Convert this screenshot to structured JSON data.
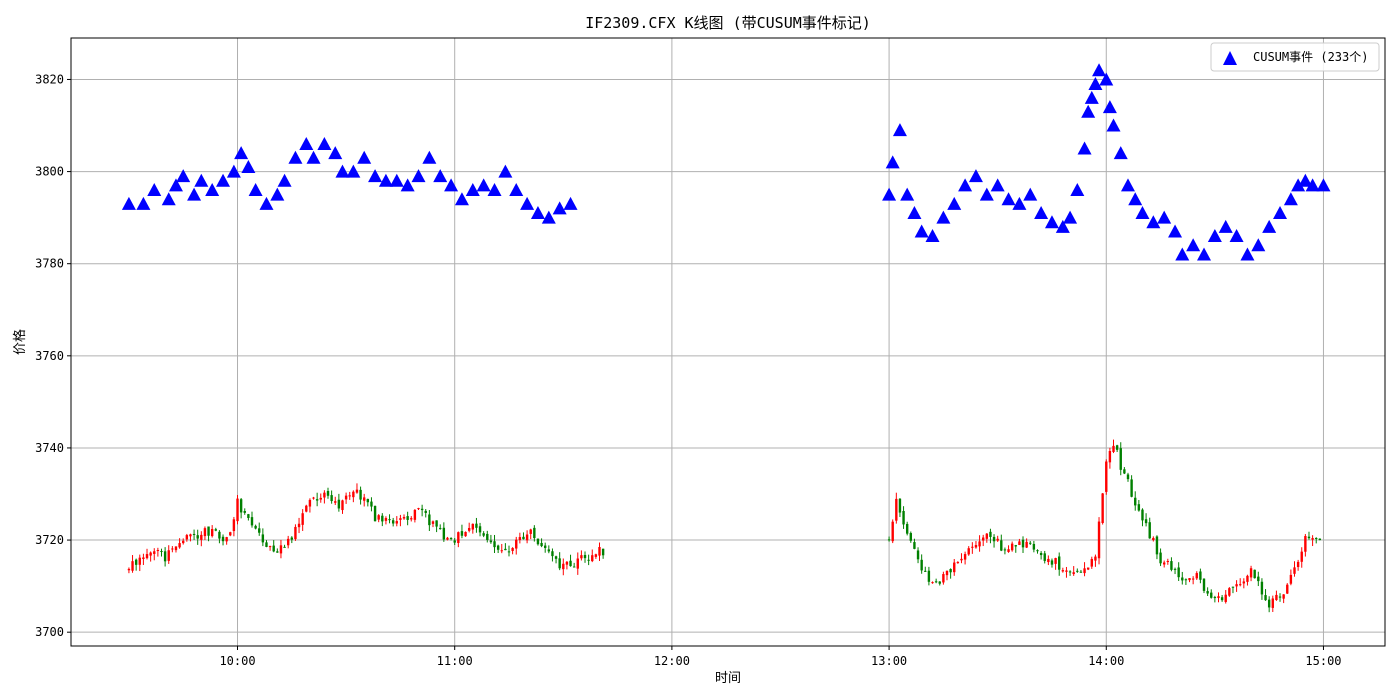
{
  "chart_data": {
    "type": "candlestick",
    "title": "IF2309.CFX K线图 (带CUSUM事件标记)",
    "xlabel": "时间",
    "ylabel": "价格",
    "xlim": [
      "09:14",
      "15:17"
    ],
    "ylim": [
      3697,
      3829
    ],
    "x_ticks": [
      "10:00",
      "11:00",
      "12:00",
      "13:00",
      "14:00",
      "15:00"
    ],
    "y_ticks": [
      3700,
      3720,
      3740,
      3760,
      3780,
      3800,
      3820
    ],
    "grid": true,
    "legend": {
      "label": "CUSUM事件 (233个)",
      "position": "top-right"
    },
    "colors": {
      "up": "#ff0000",
      "down": "#008000",
      "marker": "#0000ff",
      "grid": "#b0b0b0"
    },
    "series": [
      {
        "type": "candlestick",
        "close_path": [
          [
            "09:30",
            3714
          ],
          [
            "09:36",
            3718
          ],
          [
            "09:40",
            3716
          ],
          [
            "09:45",
            3720
          ],
          [
            "09:52",
            3722
          ],
          [
            "09:57",
            3720
          ],
          [
            "10:00",
            3728
          ],
          [
            "10:05",
            3722
          ],
          [
            "10:10",
            3717
          ],
          [
            "10:15",
            3721
          ],
          [
            "10:20",
            3728
          ],
          [
            "10:24",
            3731
          ],
          [
            "10:28",
            3727
          ],
          [
            "10:33",
            3731
          ],
          [
            "10:38",
            3725
          ],
          [
            "10:45",
            3724
          ],
          [
            "10:50",
            3727
          ],
          [
            "10:55",
            3722
          ],
          [
            "11:00",
            3720
          ],
          [
            "11:05",
            3724
          ],
          [
            "11:10",
            3719
          ],
          [
            "11:15",
            3718
          ],
          [
            "11:20",
            3722
          ],
          [
            "11:25",
            3718
          ],
          [
            "11:30",
            3714
          ],
          [
            "11:35",
            3716
          ],
          [
            "11:42",
            3718
          ],
          [
            "13:00",
            3719
          ],
          [
            "13:02",
            3729
          ],
          [
            "13:05",
            3722
          ],
          [
            "13:08",
            3715
          ],
          [
            "13:12",
            3710
          ],
          [
            "13:17",
            3714
          ],
          [
            "13:22",
            3718
          ],
          [
            "13:27",
            3722
          ],
          [
            "13:32",
            3718
          ],
          [
            "13:38",
            3719
          ],
          [
            "13:44",
            3716
          ],
          [
            "13:48",
            3714
          ],
          [
            "13:53",
            3713
          ],
          [
            "13:57",
            3716
          ],
          [
            "14:00",
            3738
          ],
          [
            "14:02",
            3741
          ],
          [
            "14:05",
            3734
          ],
          [
            "14:10",
            3725
          ],
          [
            "14:15",
            3716
          ],
          [
            "14:20",
            3712
          ],
          [
            "14:25",
            3712
          ],
          [
            "14:30",
            3707
          ],
          [
            "14:35",
            3709
          ],
          [
            "14:40",
            3713
          ],
          [
            "14:45",
            3706
          ],
          [
            "14:50",
            3710
          ],
          [
            "14:55",
            3720
          ],
          [
            "14:59",
            3720
          ]
        ]
      },
      {
        "name": "CUSUM事件 (233个)",
        "type": "scatter",
        "marker": "triangle-up",
        "points": [
          [
            "09:30",
            3793
          ],
          [
            "09:34",
            3793
          ],
          [
            "09:37",
            3796
          ],
          [
            "09:41",
            3794
          ],
          [
            "09:43",
            3797
          ],
          [
            "09:45",
            3799
          ],
          [
            "09:48",
            3795
          ],
          [
            "09:50",
            3798
          ],
          [
            "09:53",
            3796
          ],
          [
            "09:56",
            3798
          ],
          [
            "09:59",
            3800
          ],
          [
            "10:01",
            3804
          ],
          [
            "10:03",
            3801
          ],
          [
            "10:05",
            3796
          ],
          [
            "10:08",
            3793
          ],
          [
            "10:11",
            3795
          ],
          [
            "10:13",
            3798
          ],
          [
            "10:16",
            3803
          ],
          [
            "10:19",
            3806
          ],
          [
            "10:21",
            3803
          ],
          [
            "10:24",
            3806
          ],
          [
            "10:27",
            3804
          ],
          [
            "10:29",
            3800
          ],
          [
            "10:32",
            3800
          ],
          [
            "10:35",
            3803
          ],
          [
            "10:38",
            3799
          ],
          [
            "10:41",
            3798
          ],
          [
            "10:44",
            3798
          ],
          [
            "10:47",
            3797
          ],
          [
            "10:50",
            3799
          ],
          [
            "10:53",
            3803
          ],
          [
            "10:56",
            3799
          ],
          [
            "10:59",
            3797
          ],
          [
            "11:02",
            3794
          ],
          [
            "11:05",
            3796
          ],
          [
            "11:08",
            3797
          ],
          [
            "11:11",
            3796
          ],
          [
            "11:14",
            3800
          ],
          [
            "11:17",
            3796
          ],
          [
            "11:20",
            3793
          ],
          [
            "11:23",
            3791
          ],
          [
            "11:26",
            3790
          ],
          [
            "11:29",
            3792
          ],
          [
            "11:32",
            3793
          ],
          [
            "13:00",
            3795
          ],
          [
            "13:01",
            3802
          ],
          [
            "13:03",
            3809
          ],
          [
            "13:05",
            3795
          ],
          [
            "13:07",
            3791
          ],
          [
            "13:09",
            3787
          ],
          [
            "13:12",
            3786
          ],
          [
            "13:15",
            3790
          ],
          [
            "13:18",
            3793
          ],
          [
            "13:21",
            3797
          ],
          [
            "13:24",
            3799
          ],
          [
            "13:27",
            3795
          ],
          [
            "13:30",
            3797
          ],
          [
            "13:33",
            3794
          ],
          [
            "13:36",
            3793
          ],
          [
            "13:39",
            3795
          ],
          [
            "13:42",
            3791
          ],
          [
            "13:45",
            3789
          ],
          [
            "13:48",
            3788
          ],
          [
            "13:50",
            3790
          ],
          [
            "13:52",
            3796
          ],
          [
            "13:54",
            3805
          ],
          [
            "13:55",
            3813
          ],
          [
            "13:56",
            3816
          ],
          [
            "13:57",
            3819
          ],
          [
            "13:58",
            3822
          ],
          [
            "14:00",
            3820
          ],
          [
            "14:01",
            3814
          ],
          [
            "14:02",
            3810
          ],
          [
            "14:04",
            3804
          ],
          [
            "14:06",
            3797
          ],
          [
            "14:08",
            3794
          ],
          [
            "14:10",
            3791
          ],
          [
            "14:13",
            3789
          ],
          [
            "14:16",
            3790
          ],
          [
            "14:19",
            3787
          ],
          [
            "14:21",
            3782
          ],
          [
            "14:24",
            3784
          ],
          [
            "14:27",
            3782
          ],
          [
            "14:30",
            3786
          ],
          [
            "14:33",
            3788
          ],
          [
            "14:36",
            3786
          ],
          [
            "14:39",
            3782
          ],
          [
            "14:42",
            3784
          ],
          [
            "14:45",
            3788
          ],
          [
            "14:48",
            3791
          ],
          [
            "14:51",
            3794
          ],
          [
            "14:53",
            3797
          ],
          [
            "14:55",
            3798
          ],
          [
            "14:57",
            3797
          ],
          [
            "15:00",
            3797
          ]
        ]
      }
    ]
  }
}
